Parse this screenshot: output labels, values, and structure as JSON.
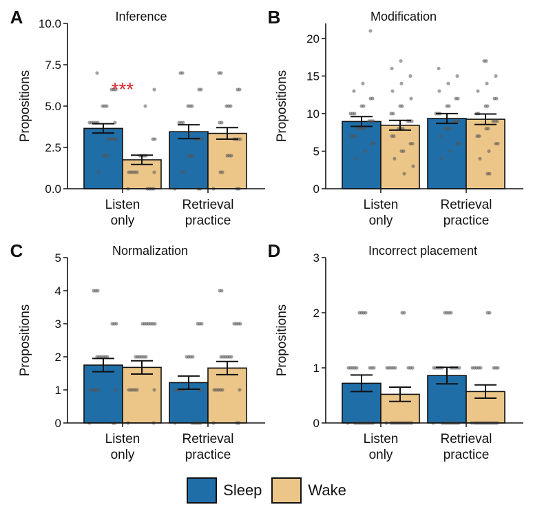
{
  "colors": {
    "sleep": "#1f6ea8",
    "wake": "#ecc689",
    "significance": "#d9262b",
    "dots": "#555555"
  },
  "legend": {
    "items": [
      {
        "label": "Sleep",
        "color": "#1f6ea8"
      },
      {
        "label": "Wake",
        "color": "#ecc689"
      }
    ]
  },
  "chart_data": [
    {
      "panel": "A",
      "type": "bar",
      "title": "Inference",
      "ylabel": "Propositions",
      "ylim": [
        0,
        10
      ],
      "yticks": [
        "0.0",
        "2.5",
        "5.0",
        "7.5",
        "10.0"
      ],
      "categories": [
        [
          "Listen",
          "only"
        ],
        [
          "Retrieval",
          "practice"
        ]
      ],
      "series": [
        {
          "name": "Sleep",
          "values": [
            3.65,
            3.45
          ],
          "sem": [
            0.28,
            0.42
          ],
          "points": [
            [
              1,
              2,
              2,
              2,
              3,
              3,
              3,
              3,
              3,
              4,
              4,
              4,
              4,
              4,
              4,
              5,
              5,
              5,
              6,
              6,
              6,
              7
            ],
            [
              0,
              0,
              0,
              1,
              1,
              2,
              2,
              2,
              3,
              3,
              3,
              3,
              4,
              4,
              4,
              5,
              5,
              5,
              6,
              6,
              7,
              7
            ]
          ]
        },
        {
          "name": "Wake",
          "values": [
            1.75,
            3.35
          ],
          "sem": [
            0.28,
            0.35
          ],
          "points": [
            [
              0,
              0,
              0,
              0,
              0,
              1,
              1,
              1,
              1,
              1,
              1,
              2,
              2,
              2,
              2,
              3,
              3,
              5,
              6
            ],
            [
              0,
              0,
              0,
              1,
              1,
              2,
              2,
              2,
              3,
              3,
              3,
              3,
              4,
              4,
              5,
              5,
              5,
              6,
              6,
              7,
              7
            ]
          ]
        }
      ],
      "annotations": [
        {
          "text": "***",
          "category": 0,
          "value": 6.2
        }
      ]
    },
    {
      "panel": "B",
      "type": "bar",
      "title": "Modification",
      "ylabel": "Propositions",
      "ylim": [
        0,
        22
      ],
      "yticks": [
        "0",
        "5",
        "10",
        "15",
        "20"
      ],
      "categories": [
        [
          "Listen",
          "only"
        ],
        [
          "Retrieval",
          "practice"
        ]
      ],
      "series": [
        {
          "name": "Sleep",
          "values": [
            8.95,
            9.35
          ],
          "sem": [
            0.65,
            0.65
          ],
          "points": [
            [
              4,
              5,
              6,
              6,
              7,
              7,
              7,
              8,
              8,
              8,
              8,
              9,
              9,
              9,
              10,
              10,
              10,
              11,
              11,
              12,
              12,
              13,
              14,
              21
            ],
            [
              4,
              5,
              6,
              6,
              7,
              8,
              8,
              8,
              9,
              9,
              9,
              10,
              10,
              10,
              11,
              11,
              12,
              12,
              13,
              14,
              15,
              16
            ]
          ]
        },
        {
          "name": "Wake",
          "values": [
            8.45,
            9.25
          ],
          "sem": [
            0.65,
            0.7
          ],
          "points": [
            [
              2,
              3,
              4,
              5,
              5,
              6,
              6,
              7,
              7,
              8,
              8,
              8,
              9,
              9,
              9,
              10,
              10,
              11,
              11,
              12,
              13,
              14,
              15,
              16,
              17
            ],
            [
              2,
              2,
              4,
              5,
              6,
              6,
              7,
              7,
              8,
              8,
              9,
              9,
              9,
              10,
              10,
              11,
              11,
              12,
              12,
              13,
              14,
              15,
              17,
              17
            ]
          ]
        }
      ],
      "annotations": []
    },
    {
      "panel": "C",
      "type": "bar",
      "title": "Normalization",
      "ylabel": "Propositions",
      "ylim": [
        0,
        5
      ],
      "yticks": [
        "0",
        "1",
        "2",
        "3",
        "4",
        "5"
      ],
      "categories": [
        [
          "Listen",
          "only"
        ],
        [
          "Retrieval",
          "practice"
        ]
      ],
      "series": [
        {
          "name": "Sleep",
          "values": [
            1.75,
            1.22
          ],
          "sem": [
            0.2,
            0.2
          ],
          "points": [
            [
              0,
              0,
              0,
              1,
              1,
              1,
              1,
              1,
              1,
              2,
              2,
              2,
              2,
              2,
              2,
              3,
              3,
              3,
              4,
              4,
              4
            ],
            [
              0,
              0,
              0,
              0,
              0,
              0,
              1,
              1,
              1,
              1,
              1,
              1,
              1,
              2,
              2,
              2,
              2,
              3,
              3,
              3
            ]
          ]
        },
        {
          "name": "Wake",
          "values": [
            1.68,
            1.66
          ],
          "sem": [
            0.2,
            0.2
          ],
          "points": [
            [
              0,
              0,
              1,
              1,
              1,
              1,
              1,
              1,
              2,
              2,
              2,
              2,
              2,
              2,
              3,
              3,
              3,
              3,
              3,
              3,
              3
            ],
            [
              0,
              0,
              0,
              1,
              1,
              1,
              1,
              1,
              1,
              2,
              2,
              2,
              2,
              2,
              2,
              3,
              3,
              3,
              3,
              4,
              4
            ]
          ]
        }
      ],
      "annotations": []
    },
    {
      "panel": "D",
      "type": "bar",
      "title": "Incorrect placement",
      "ylabel": "Propositions",
      "ylim": [
        0,
        3
      ],
      "yticks": [
        "0",
        "1",
        "2",
        "3"
      ],
      "categories": [
        [
          "Listen",
          "only"
        ],
        [
          "Retrieval",
          "practice"
        ]
      ],
      "series": [
        {
          "name": "Sleep",
          "values": [
            0.72,
            0.86
          ],
          "sem": [
            0.15,
            0.15
          ],
          "points": [
            [
              0,
              0,
              0,
              0,
              0,
              0,
              0,
              0,
              0,
              0,
              0,
              1,
              1,
              1,
              1,
              1,
              1,
              1,
              1,
              2,
              2,
              2,
              2
            ],
            [
              0,
              0,
              0,
              0,
              0,
              0,
              0,
              0,
              0,
              0,
              1,
              1,
              1,
              1,
              1,
              1,
              1,
              1,
              1,
              1,
              2,
              2,
              2,
              2
            ]
          ]
        },
        {
          "name": "Wake",
          "values": [
            0.52,
            0.57
          ],
          "sem": [
            0.13,
            0.12
          ],
          "points": [
            [
              0,
              0,
              0,
              0,
              0,
              0,
              0,
              0,
              0,
              0,
              0,
              0,
              1,
              1,
              1,
              1,
              1,
              1,
              1,
              1,
              2,
              2
            ],
            [
              0,
              0,
              0,
              0,
              0,
              0,
              0,
              0,
              0,
              0,
              0,
              0,
              0,
              1,
              1,
              1,
              1,
              1,
              1,
              1,
              1,
              2,
              2
            ]
          ]
        }
      ],
      "annotations": []
    }
  ]
}
